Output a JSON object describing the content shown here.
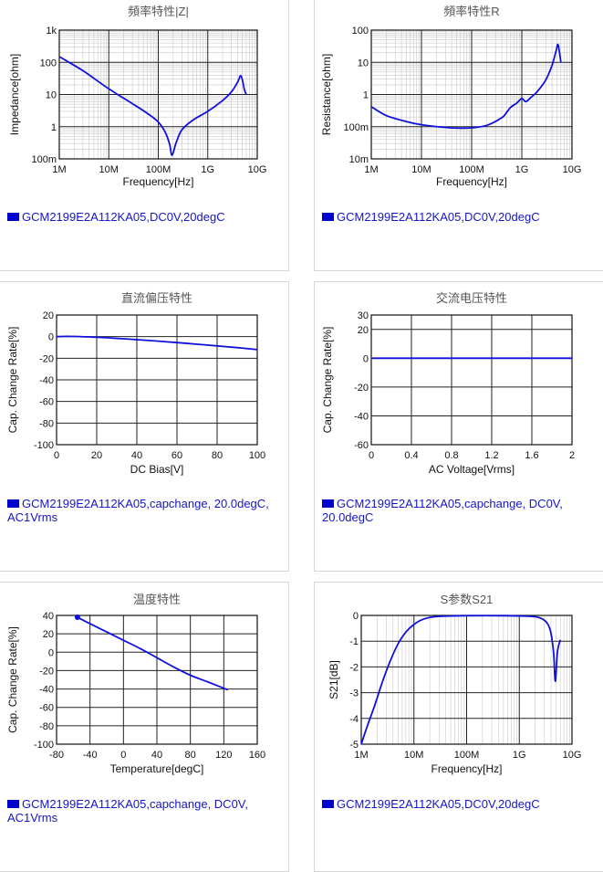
{
  "legend_color": "#0000cc",
  "curve_color": "#1010dd",
  "chart_data": [
    {
      "id": "impedance",
      "type": "line",
      "title": "頻率特性|Z|",
      "xlabel": "Frequency[Hz]",
      "ylabel": "Impedance[ohm]",
      "xscale": "log",
      "yscale": "log",
      "xlim": [
        1000000,
        10000000000
      ],
      "ylim": [
        0.1,
        1000
      ],
      "xticks": [
        "1M",
        "10M",
        "100M",
        "1G",
        "10G"
      ],
      "yticks": [
        "1k",
        "100",
        "10",
        "1",
        "100m"
      ],
      "legend": "GCM2199E2A112KA05,DC0V,20degC",
      "series": [
        {
          "x": [
            1000000,
            3000000,
            10000000,
            30000000,
            60000000,
            100000000,
            140000000,
            170000000,
            190000000,
            230000000,
            300000000,
            500000000,
            1000000000,
            2000000000,
            3000000000,
            4000000000,
            4700000000,
            5500000000,
            6000000000
          ],
          "y": [
            150,
            55,
            15,
            5.2,
            2.6,
            1.4,
            0.65,
            0.28,
            0.13,
            0.32,
            0.8,
            1.6,
            3.0,
            6.5,
            12,
            24,
            38,
            14,
            10
          ]
        }
      ]
    },
    {
      "id": "resistance",
      "type": "line",
      "title": "頻率特性R",
      "xlabel": "Frequency[Hz]",
      "ylabel": "Resistance[ohm]",
      "xscale": "log",
      "yscale": "log",
      "xlim": [
        1000000,
        10000000000
      ],
      "ylim": [
        0.01,
        100
      ],
      "xticks": [
        "1M",
        "10M",
        "100M",
        "1G",
        "10G"
      ],
      "yticks": [
        "100",
        "10",
        "1",
        "100m",
        "10m"
      ],
      "legend": "GCM2199E2A112KA05,DC0V,20degC",
      "series": [
        {
          "x": [
            1000000,
            2000000,
            5000000,
            10000000,
            30000000,
            60000000,
            100000000,
            200000000,
            400000000,
            500000000,
            600000000,
            800000000,
            1000000000,
            1200000000,
            1500000000,
            2000000000,
            3000000000,
            4000000000,
            4800000000,
            5300000000,
            6000000000
          ],
          "y": [
            0.42,
            0.22,
            0.145,
            0.115,
            0.095,
            0.09,
            0.092,
            0.11,
            0.19,
            0.28,
            0.4,
            0.55,
            0.75,
            0.6,
            0.8,
            1.2,
            2.8,
            8,
            22,
            35,
            10
          ]
        }
      ]
    },
    {
      "id": "dc-bias",
      "type": "line",
      "title": "直流偏压特性",
      "xlabel": "DC Bias[V]",
      "ylabel": "Cap. Change Rate[%]",
      "xlim": [
        0,
        100
      ],
      "ylim": [
        -100,
        20
      ],
      "xticks": [
        "0",
        "20",
        "40",
        "60",
        "80",
        "100"
      ],
      "yticks": [
        "20",
        "0",
        "-20",
        "-40",
        "-60",
        "-80",
        "-100"
      ],
      "legend": "GCM2199E2A112KA05,capchange, 20.0degC, AC1Vrms",
      "series": [
        {
          "x": [
            0,
            5,
            10,
            20,
            30,
            40,
            50,
            60,
            70,
            80,
            90,
            100
          ],
          "y": [
            0,
            0.2,
            0.1,
            -0.6,
            -1.6,
            -2.8,
            -4.1,
            -5.5,
            -7.0,
            -8.6,
            -10.2,
            -12.0
          ]
        }
      ]
    },
    {
      "id": "ac-voltage",
      "type": "line",
      "title": "交流电压特性",
      "xlabel": "AC Voltage[Vrms]",
      "ylabel": "Cap. Change Rate[%]",
      "xlim": [
        0,
        2
      ],
      "ylim": [
        -60,
        30
      ],
      "xticks": [
        "0",
        "0.4",
        "0.8",
        "1.2",
        "1.6",
        "2"
      ],
      "yticks": [
        "30",
        "20",
        "0",
        "-20",
        "-40",
        "-60"
      ],
      "legend": "GCM2199E2A112KA05,capchange, DC0V, 20.0degC",
      "series": [
        {
          "x": [
            0.01,
            0.4,
            0.8,
            1.2,
            1.6,
            2.0
          ],
          "y": [
            0,
            0,
            0,
            0,
            0,
            0
          ]
        }
      ]
    },
    {
      "id": "temperature",
      "type": "line",
      "title": "温度特性",
      "xlabel": "Temperature[degC]",
      "ylabel": "Cap. Change Rate[%]",
      "xlim": [
        -80,
        160
      ],
      "ylim": [
        -100,
        40
      ],
      "xticks": [
        "-80",
        "-40",
        "0",
        "40",
        "80",
        "120",
        "160"
      ],
      "yticks": [
        "40",
        "20",
        "0",
        "-20",
        "-40",
        "-60",
        "-80",
        "-100"
      ],
      "legend": "GCM2199E2A112KA05,capchange, DC0V, AC1Vrms",
      "series": [
        {
          "x": [
            -55,
            -40,
            -20,
            0,
            20,
            40,
            60,
            80,
            100,
            125
          ],
          "y": [
            38,
            31,
            22,
            13,
            4,
            -6,
            -16,
            -25,
            -32,
            -41
          ]
        }
      ]
    },
    {
      "id": "s21",
      "type": "line",
      "title": "S参数S21",
      "xlabel": "Frequency[Hz]",
      "ylabel": "S21[dB]",
      "xscale": "log",
      "xlim": [
        1000000,
        10000000000
      ],
      "ylim": [
        -5,
        0
      ],
      "xticks": [
        "1M",
        "10M",
        "100M",
        "1G",
        "10G"
      ],
      "yticks": [
        "0",
        "-1",
        "-2",
        "-3",
        "-4",
        "-5"
      ],
      "legend": "GCM2199E2A112KA05,DC0V,20degC",
      "series": [
        {
          "x": [
            1000000,
            1300000,
            1800000,
            2500000,
            3500000,
            5000000,
            7000000,
            10000000,
            15000000,
            25000000,
            50000000,
            100000000,
            500000000,
            1000000000,
            2000000000,
            2800000000,
            3500000000,
            4000000000,
            4500000000,
            4700000000,
            4900000000,
            5300000000,
            6000000000
          ],
          "y": [
            -5,
            -4.3,
            -3.5,
            -2.6,
            -1.8,
            -1.1,
            -0.65,
            -0.35,
            -0.15,
            -0.05,
            -0.02,
            -0.01,
            -0.01,
            -0.02,
            -0.05,
            -0.15,
            -0.35,
            -0.7,
            -1.5,
            -2.3,
            -2.5,
            -1.4,
            -0.95
          ]
        }
      ]
    }
  ]
}
